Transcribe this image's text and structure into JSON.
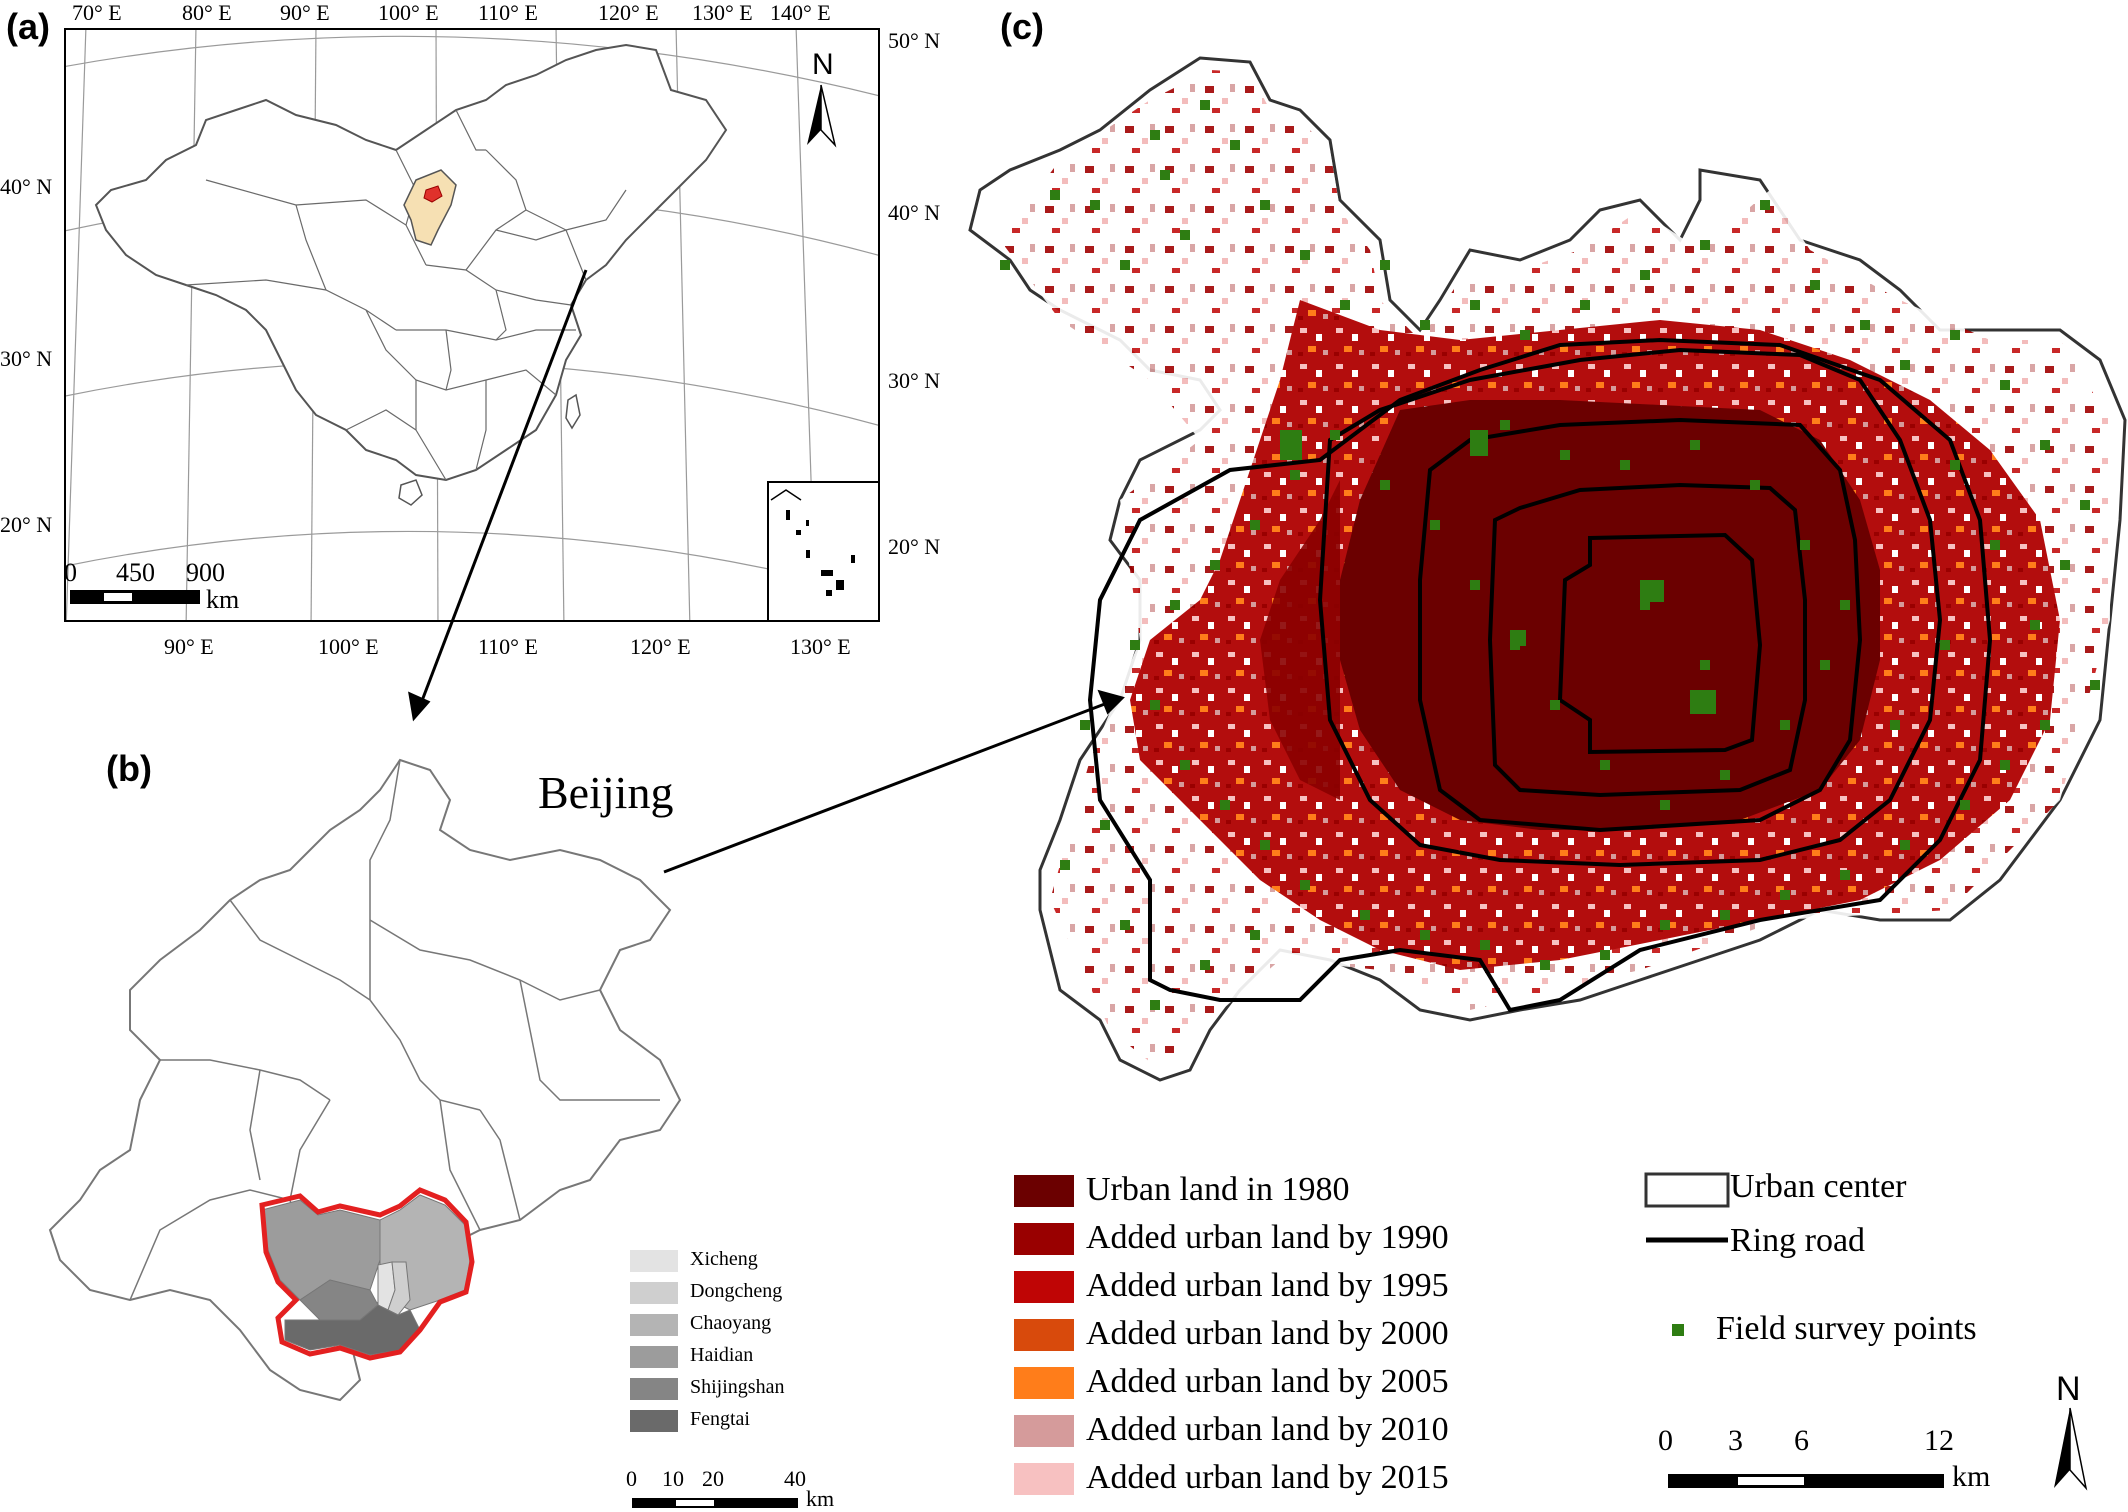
{
  "panel_a": {
    "label": "(a)",
    "top_ticks": [
      "70° E",
      "80° E",
      "90° E",
      "100° E",
      "110° E",
      "120° E",
      "130° E",
      "140° E"
    ],
    "bottom_ticks": [
      "90° E",
      "100° E",
      "110° E",
      "120° E",
      "130° E"
    ],
    "left_ticks": [
      "40° N",
      "30° N",
      "20° N"
    ],
    "right_ticks": [
      "50° N",
      "40° N",
      "30° N",
      "20° N"
    ],
    "scale_ticks": [
      "0",
      "450",
      "900"
    ],
    "scale_unit": "km",
    "north": "N"
  },
  "panel_b": {
    "label": "(b)",
    "city_name": "Beijing",
    "districts": [
      {
        "name": "Xicheng",
        "color": "#e3e3e3"
      },
      {
        "name": "Dongcheng",
        "color": "#cfcfcf"
      },
      {
        "name": "Chaoyang",
        "color": "#b4b4b4"
      },
      {
        "name": "Haidian",
        "color": "#9c9c9c"
      },
      {
        "name": "Shijingshan",
        "color": "#858585"
      },
      {
        "name": "Fengtai",
        "color": "#6a6a6a"
      }
    ],
    "scale_ticks": [
      "0",
      "10",
      "20",
      "40"
    ],
    "scale_unit": "km"
  },
  "panel_c": {
    "label": "(c)",
    "legend": [
      {
        "label": "Urban land in 1980",
        "color": "#6b0000"
      },
      {
        "label": "Added urban land by 1990",
        "color": "#990000"
      },
      {
        "label": "Added urban land by 1995",
        "color": "#bf0505"
      },
      {
        "label": "Added urban land by 2000",
        "color": "#d84a0c"
      },
      {
        "label": "Added urban land by 2005",
        "color": "#ff7d1a"
      },
      {
        "label": "Added urban land by 2010",
        "color": "#d59b9b"
      },
      {
        "label": "Added urban land by 2015",
        "color": "#f7c1c1"
      }
    ],
    "urban_center": "Urban center",
    "ring_road": "Ring road",
    "field_points": "Field survey points",
    "field_color": "#2e7d12",
    "scale_ticks": [
      "0",
      "3",
      "6",
      "12"
    ],
    "scale_unit": "km",
    "north": "N"
  }
}
